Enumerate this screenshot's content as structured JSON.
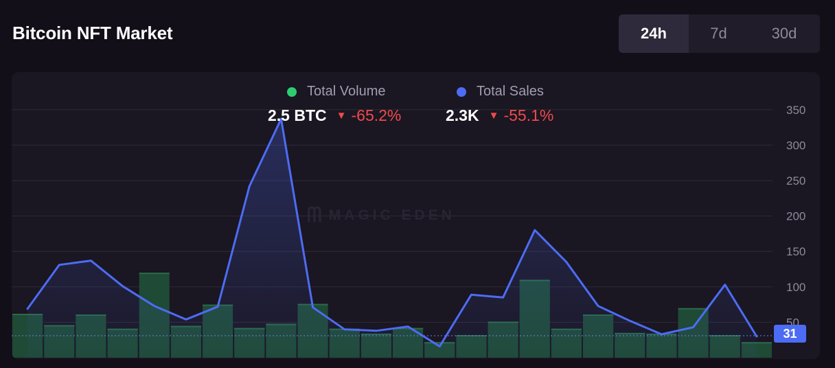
{
  "title": "Bitcoin NFT Market",
  "range_tabs": {
    "items": [
      "24h",
      "7d",
      "30d"
    ],
    "active": "24h"
  },
  "watermark": {
    "icon": "magic-eden-logo-icon",
    "text": "MAGIC EDEN"
  },
  "stats": {
    "volume": {
      "value": "2.5 BTC",
      "change": "-65.2%",
      "direction": "down"
    },
    "sales": {
      "value": "2.3K",
      "change": "-55.1%",
      "direction": "down"
    }
  },
  "colors": {
    "background": "#120f18",
    "card": "#1a1622",
    "volume": "#2ecc71",
    "sales": "#4d6cf4",
    "negative": "#f04b4b"
  },
  "chart_data": {
    "type": "bar",
    "series": [
      {
        "name": "Total Volume",
        "type": "bar",
        "color": "#2ecc71",
        "values": [
          62,
          46,
          61,
          41,
          120,
          45,
          75,
          42,
          48,
          76,
          41,
          34,
          42,
          22,
          32,
          51,
          110,
          41,
          61,
          35,
          34,
          70,
          32,
          22
        ]
      },
      {
        "name": "Total Sales",
        "type": "line",
        "color": "#4d6cf4",
        "values": [
          69,
          131,
          137,
          101,
          73,
          54,
          72,
          242,
          337,
          71,
          40,
          38,
          44,
          16,
          89,
          85,
          180,
          135,
          73,
          52,
          33,
          43,
          103,
          30
        ]
      }
    ],
    "y_axis": {
      "ticks": [
        50,
        100,
        150,
        200,
        250,
        300,
        350
      ],
      "range": [
        0,
        360
      ],
      "position": "right"
    },
    "current_value_label": "31",
    "current_value": 31,
    "grid": true,
    "legend_position": "top-center"
  }
}
